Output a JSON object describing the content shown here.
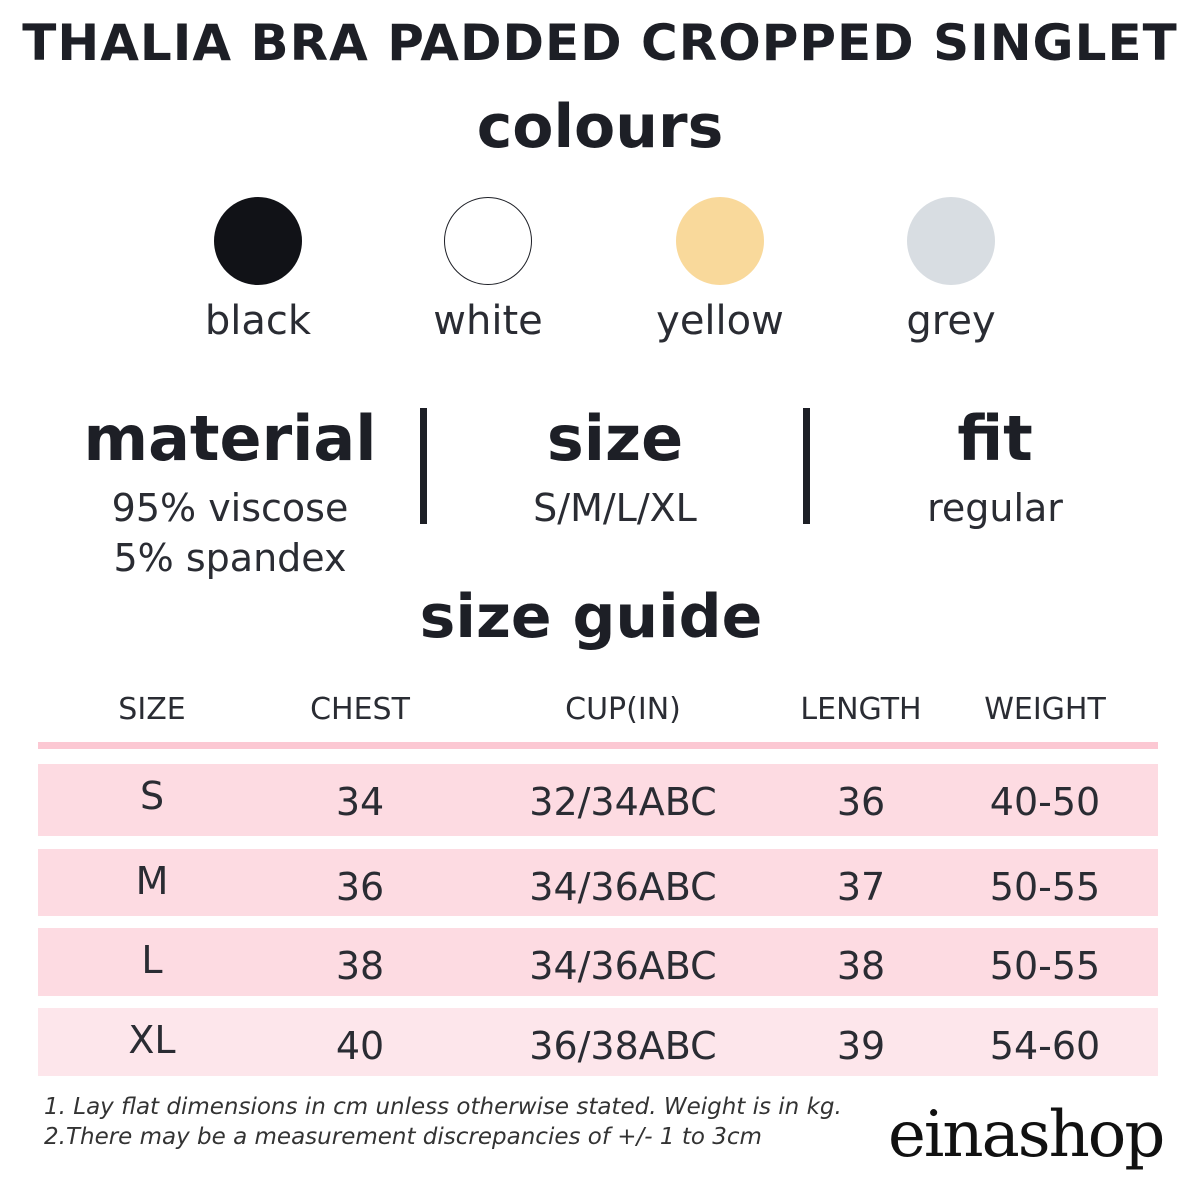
{
  "header": {
    "title": "THALIA BRA PADDED CROPPED SINGLET"
  },
  "colours": {
    "heading": "colours",
    "items": [
      {
        "name": "black",
        "color": "#111217"
      },
      {
        "name": "white",
        "color": "#ffffff"
      },
      {
        "name": "yellow",
        "color": "#f9d99b"
      },
      {
        "name": "grey",
        "color": "#d8dde2"
      }
    ]
  },
  "specs": [
    {
      "label": "material",
      "lines": [
        "95% viscose",
        "5% spandex"
      ]
    },
    {
      "label": "size",
      "lines": [
        "S/M/L/XL"
      ]
    },
    {
      "label": "fit",
      "lines": [
        "regular"
      ]
    }
  ],
  "size_guide": {
    "heading": "size guide",
    "table": {
      "columns": [
        "SIZE",
        "CHEST",
        "CUP(IN)",
        "LENGTH",
        "WEIGHT"
      ],
      "rows": [
        [
          "S",
          "34",
          "32/34ABC",
          "36",
          "40-50"
        ],
        [
          "M",
          "36",
          "34/36ABC",
          "37",
          "50-55"
        ],
        [
          "L",
          "38",
          "34/36ABC",
          "38",
          "50-55"
        ],
        [
          "XL",
          "40",
          "36/38ABC",
          "39",
          "54-60"
        ]
      ]
    },
    "notes": [
      "1. Lay flat dimensions in cm unless otherwise stated. Weight is in kg.",
      "2.There may be a measurement discrepancies of +/- 1 to 3cm"
    ]
  },
  "logo": {
    "text": "einashop"
  }
}
